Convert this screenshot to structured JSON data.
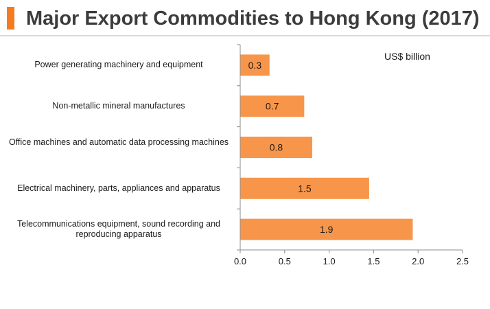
{
  "title": "Major Export Commodities to Hong Kong (2017)",
  "chart_data": {
    "type": "bar",
    "orientation": "horizontal",
    "title": "Major Export Commodities to Hong Kong (2017)",
    "unit_label": "US$ billion",
    "categories": [
      "Power generating machinery and equipment",
      "Non-metallic mineral manufactures",
      "Office machines and automatic data processing machines",
      "Electrical machinery, parts, appliances and apparatus",
      "Telecommunications equipment, sound recording and reproducing apparatus"
    ],
    "values": [
      0.33,
      0.72,
      0.81,
      1.45,
      1.94
    ],
    "data_labels": [
      "0.3",
      "0.7",
      "0.8",
      "1.5",
      "1.9"
    ],
    "xlim": [
      0,
      2.5
    ],
    "xticks": [
      "0.0",
      "0.5",
      "1.0",
      "1.5",
      "2.0",
      "2.5"
    ],
    "bar_color": "#f7964a",
    "accent_color": "#f47c20",
    "grid": false
  }
}
